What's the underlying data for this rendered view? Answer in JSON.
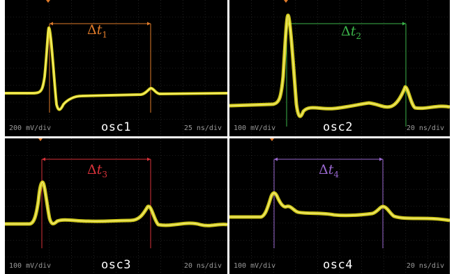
{
  "panels": [
    {
      "id": "osc1",
      "label": "osc1",
      "left_scale": "200 mV/div",
      "right_scale": "25 ns/div",
      "delta_symbol": "Δ",
      "delta_var": "t",
      "delta_sub": "1",
      "color": "#e07b2a"
    },
    {
      "id": "osc2",
      "label": "osc2",
      "left_scale": "100 mV/div",
      "right_scale": "20 ns/div",
      "delta_symbol": "Δ",
      "delta_var": "t",
      "delta_sub": "2",
      "color": "#3bb54a"
    },
    {
      "id": "osc3",
      "label": "osc3",
      "left_scale": "100 mV/div",
      "right_scale": "20 ns/div",
      "delta_symbol": "Δ",
      "delta_var": "t",
      "delta_sub": "3",
      "color": "#d8323a"
    },
    {
      "id": "osc4",
      "label": "osc4",
      "left_scale": "100 mV/div",
      "right_scale": "20 ns/div",
      "delta_symbol": "Δ",
      "delta_var": "t",
      "delta_sub": "4",
      "color": "#9a68d0"
    }
  ],
  "colors": {
    "trace": "#e8e020",
    "grid": "#3a3a3a",
    "background": "#000000"
  }
}
